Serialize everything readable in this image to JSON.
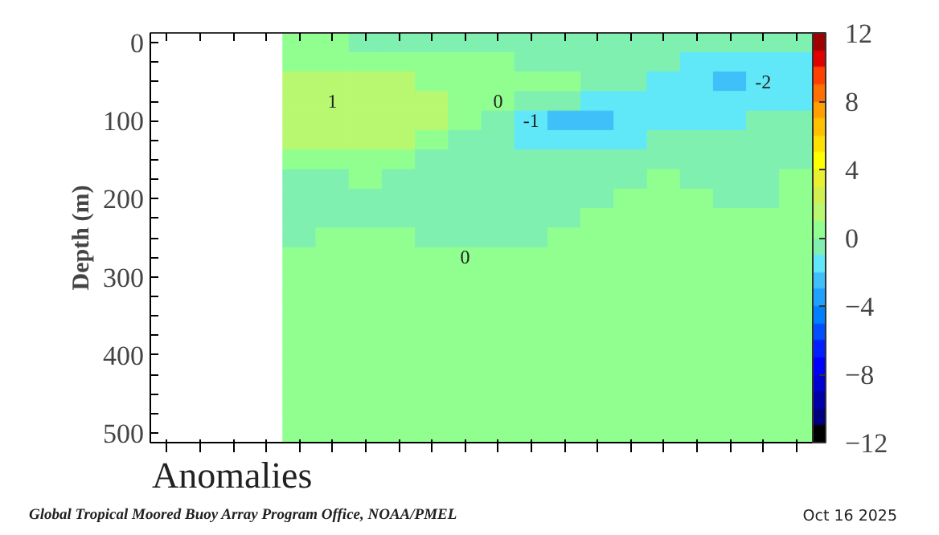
{
  "chart_data": {
    "type": "heatmap",
    "title": "Anomalies",
    "ylabel": "Depth (m)",
    "categories": [
      null,
      null,
      null,
      null,
      null,
      null,
      null,
      null,
      null,
      null,
      null,
      null,
      null,
      null,
      null,
      null,
      null,
      null,
      null,
      null
    ],
    "y_categories": [
      "0",
      null,
      null,
      null,
      "100",
      null,
      null,
      null,
      "200",
      null,
      null,
      null,
      "300",
      null,
      null,
      null,
      "400",
      null,
      null,
      null,
      "500"
    ],
    "clim": [
      -12,
      12
    ],
    "cticks": [
      -12,
      -8,
      -4,
      0,
      4,
      8,
      12
    ],
    "tick_labels": "y",
    "cells": [
      [
        null,
        null,
        null,
        null,
        0.5,
        0.5,
        -0.5,
        -0.5,
        -0.5,
        -0.5,
        -0.5,
        -0.5,
        -0.5,
        -0.5,
        -0.5,
        -0.5,
        -0.5,
        -0.5,
        -0.5,
        -0.5
      ],
      [
        null,
        null,
        null,
        null,
        0.5,
        0.5,
        0.5,
        0.5,
        0.5,
        0.5,
        0.5,
        -0.5,
        -0.5,
        -0.5,
        -0.5,
        -0.5,
        -1.5,
        -1.5,
        -1.5,
        -1.5
      ],
      [
        null,
        null,
        null,
        null,
        1.5,
        1.5,
        1.5,
        1.5,
        0.5,
        0.5,
        0.5,
        0.5,
        0.5,
        -0.5,
        -0.5,
        -1.5,
        -1.5,
        -2.5,
        -1.5,
        -1.5
      ],
      [
        null,
        null,
        null,
        null,
        1.5,
        1.5,
        1.5,
        1.5,
        1.5,
        0.5,
        0.5,
        -0.5,
        -0.5,
        -1.5,
        -1.5,
        -1.5,
        -1.5,
        -1.5,
        -1.5,
        -1.5
      ],
      [
        null,
        null,
        null,
        null,
        1.5,
        1.5,
        1.5,
        1.5,
        1.5,
        0.5,
        -0.5,
        -1.5,
        -2.5,
        -2.5,
        -1.5,
        -1.5,
        -1.5,
        -1.5,
        -0.5,
        -0.5
      ],
      [
        null,
        null,
        null,
        null,
        1.5,
        1.5,
        1.5,
        1.5,
        0.5,
        -0.5,
        -0.5,
        -1.5,
        -1.5,
        -1.5,
        -1.5,
        -0.5,
        -0.5,
        -0.5,
        -0.5,
        -0.5
      ],
      [
        null,
        null,
        null,
        null,
        0.5,
        0.5,
        0.5,
        0.5,
        -0.5,
        -0.5,
        -0.5,
        -0.5,
        -0.5,
        -0.5,
        -0.5,
        -0.5,
        -0.5,
        -0.5,
        -0.5,
        -0.5
      ],
      [
        null,
        null,
        null,
        null,
        -0.5,
        -0.5,
        0.5,
        -0.5,
        -0.5,
        -0.5,
        -0.5,
        -0.5,
        -0.5,
        -0.5,
        -0.5,
        0.5,
        -0.5,
        -0.5,
        -0.5,
        0.5
      ],
      [
        null,
        null,
        null,
        null,
        -0.5,
        -0.5,
        -0.5,
        -0.5,
        -0.5,
        -0.5,
        -0.5,
        -0.5,
        -0.5,
        -0.5,
        0.5,
        0.5,
        0.5,
        -0.5,
        -0.5,
        0.5
      ],
      [
        null,
        null,
        null,
        null,
        -0.5,
        -0.5,
        -0.5,
        -0.5,
        -0.5,
        -0.5,
        -0.5,
        -0.5,
        -0.5,
        0.5,
        0.5,
        0.5,
        0.5,
        0.5,
        0.5,
        0.5
      ],
      [
        null,
        null,
        null,
        null,
        -0.5,
        0.5,
        0.5,
        0.5,
        -0.5,
        -0.5,
        -0.5,
        -0.5,
        0.5,
        0.5,
        0.5,
        0.5,
        0.5,
        0.5,
        0.5,
        0.5
      ],
      [
        null,
        null,
        null,
        null,
        0.5,
        0.5,
        0.5,
        0.5,
        0.5,
        0.5,
        0.5,
        0.5,
        0.5,
        0.5,
        0.5,
        0.5,
        0.5,
        0.5,
        0.5,
        0.5
      ],
      [
        null,
        null,
        null,
        null,
        0.5,
        0.5,
        0.5,
        0.5,
        0.5,
        0.5,
        0.5,
        0.5,
        0.5,
        0.5,
        0.5,
        0.5,
        0.5,
        0.5,
        0.5,
        0.5
      ],
      [
        null,
        null,
        null,
        null,
        0.5,
        0.5,
        0.5,
        0.5,
        0.5,
        0.5,
        0.5,
        0.5,
        0.5,
        0.5,
        0.5,
        0.5,
        0.5,
        0.5,
        0.5,
        0.5
      ],
      [
        null,
        null,
        null,
        null,
        0.5,
        0.5,
        0.5,
        0.5,
        0.5,
        0.5,
        0.5,
        0.5,
        0.5,
        0.5,
        0.5,
        0.5,
        0.5,
        0.5,
        0.5,
        0.5
      ],
      [
        null,
        null,
        null,
        null,
        0.5,
        0.5,
        0.5,
        0.5,
        0.5,
        0.5,
        0.5,
        0.5,
        0.5,
        0.5,
        0.5,
        0.5,
        0.5,
        0.5,
        0.5,
        0.5
      ],
      [
        null,
        null,
        null,
        null,
        0.5,
        0.5,
        0.5,
        0.5,
        0.5,
        0.5,
        0.5,
        0.5,
        0.5,
        0.5,
        0.5,
        0.5,
        0.5,
        0.5,
        0.5,
        0.5
      ],
      [
        null,
        null,
        null,
        null,
        0.5,
        0.5,
        0.5,
        0.5,
        0.5,
        0.5,
        0.5,
        0.5,
        0.5,
        0.5,
        0.5,
        0.5,
        0.5,
        0.5,
        0.5,
        0.5
      ],
      [
        null,
        null,
        null,
        null,
        0.5,
        0.5,
        0.5,
        0.5,
        0.5,
        0.5,
        0.5,
        0.5,
        0.5,
        0.5,
        0.5,
        0.5,
        0.5,
        0.5,
        0.5,
        0.5
      ],
      [
        null,
        null,
        null,
        null,
        0.5,
        0.5,
        0.5,
        0.5,
        0.5,
        0.5,
        0.5,
        0.5,
        0.5,
        0.5,
        0.5,
        0.5,
        0.5,
        0.5,
        0.5,
        0.5
      ],
      [
        null,
        null,
        null,
        null,
        0.5,
        0.5,
        0.5,
        0.5,
        0.5,
        0.5,
        0.5,
        0.5,
        0.5,
        0.5,
        0.5,
        0.5,
        0.5,
        0.5,
        0.5,
        0.5
      ]
    ],
    "cell_labels": [
      [
        null,
        null,
        null,
        null,
        null,
        null,
        null,
        null,
        null,
        null,
        null,
        null,
        null,
        null,
        null,
        null,
        null,
        null,
        null,
        null
      ],
      [
        null,
        null,
        null,
        null,
        null,
        null,
        null,
        null,
        null,
        null,
        null,
        null,
        null,
        null,
        null,
        null,
        null,
        null,
        null,
        null
      ],
      [
        null,
        null,
        null,
        null,
        null,
        null,
        null,
        null,
        null,
        null,
        null,
        null,
        null,
        null,
        null,
        null,
        null,
        null,
        "-2",
        null
      ],
      [
        null,
        null,
        null,
        null,
        null,
        "1",
        null,
        null,
        null,
        null,
        "0",
        null,
        null,
        null,
        null,
        null,
        null,
        null,
        null,
        null
      ],
      [
        null,
        null,
        null,
        null,
        null,
        null,
        null,
        null,
        null,
        null,
        null,
        "-1",
        null,
        null,
        null,
        null,
        null,
        null,
        null,
        null
      ],
      [
        null,
        null,
        null,
        null,
        null,
        null,
        null,
        null,
        null,
        null,
        null,
        null,
        null,
        null,
        null,
        null,
        null,
        null,
        null,
        null
      ],
      [
        null,
        null,
        null,
        null,
        null,
        null,
        null,
        null,
        null,
        null,
        null,
        null,
        null,
        null,
        null,
        null,
        null,
        null,
        null,
        null
      ],
      [
        null,
        null,
        null,
        null,
        null,
        null,
        null,
        null,
        null,
        null,
        null,
        null,
        null,
        null,
        null,
        null,
        null,
        null,
        null,
        null
      ],
      [
        null,
        null,
        null,
        null,
        null,
        null,
        null,
        null,
        null,
        null,
        null,
        null,
        null,
        null,
        null,
        null,
        null,
        null,
        null,
        null
      ],
      [
        null,
        null,
        null,
        null,
        null,
        null,
        null,
        null,
        null,
        null,
        null,
        null,
        null,
        null,
        null,
        null,
        null,
        null,
        null,
        null
      ],
      [
        null,
        null,
        null,
        null,
        null,
        null,
        null,
        null,
        null,
        null,
        null,
        null,
        null,
        null,
        null,
        null,
        null,
        null,
        null,
        null
      ],
      [
        null,
        null,
        null,
        null,
        null,
        null,
        null,
        null,
        null,
        "0",
        null,
        null,
        null,
        null,
        null,
        null,
        null,
        null,
        null,
        null
      ],
      [
        null,
        null,
        null,
        null,
        null,
        null,
        null,
        null,
        null,
        null,
        null,
        null,
        null,
        null,
        null,
        null,
        null,
        null,
        null,
        null
      ],
      [
        null,
        null,
        null,
        null,
        null,
        null,
        null,
        null,
        null,
        null,
        null,
        null,
        null,
        null,
        null,
        null,
        null,
        null,
        null,
        null
      ],
      [
        null,
        null,
        null,
        null,
        null,
        null,
        null,
        null,
        null,
        null,
        null,
        null,
        null,
        null,
        null,
        null,
        null,
        null,
        null,
        null
      ],
      [
        null,
        null,
        null,
        null,
        null,
        null,
        null,
        null,
        null,
        null,
        null,
        null,
        null,
        null,
        null,
        null,
        null,
        null,
        null,
        null
      ],
      [
        null,
        null,
        null,
        null,
        null,
        null,
        null,
        null,
        null,
        null,
        null,
        null,
        null,
        null,
        null,
        null,
        null,
        null,
        null,
        null
      ],
      [
        null,
        null,
        null,
        null,
        null,
        null,
        null,
        null,
        null,
        null,
        null,
        null,
        null,
        null,
        null,
        null,
        null,
        null,
        null,
        null
      ],
      [
        null,
        null,
        null,
        null,
        null,
        null,
        null,
        null,
        null,
        null,
        null,
        null,
        null,
        null,
        null,
        null,
        null,
        null,
        null,
        null
      ],
      [
        null,
        null,
        null,
        null,
        null,
        null,
        null,
        null,
        null,
        null,
        null,
        null,
        null,
        null,
        null,
        null,
        null,
        null,
        null,
        null
      ],
      [
        null,
        null,
        null,
        null,
        null,
        null,
        null,
        null,
        null,
        null,
        null,
        null,
        null,
        null,
        null,
        null,
        null,
        null,
        null,
        null
      ]
    ],
    "annotations": [
      "Global Tropical Moored Buoy Array Program Office, NOAA/PMEL",
      "Oct 16 2025"
    ]
  }
}
